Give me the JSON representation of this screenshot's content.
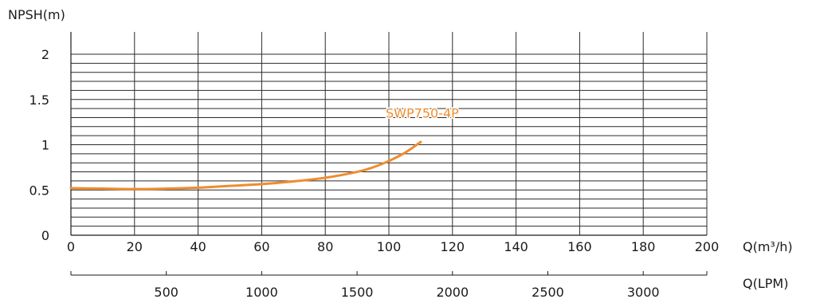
{
  "chart_data": {
    "type": "line",
    "title": "",
    "ylabel": "NPSH(m)",
    "xlabel": "Q(m³/h)",
    "x2label": "Q(LPM)",
    "ylim": [
      0,
      2
    ],
    "xlim": [
      0,
      200
    ],
    "y_ticks": [
      "0",
      "0.5",
      "1",
      "1.5",
      "2"
    ],
    "y_tick_values": [
      0,
      0.5,
      1,
      1.5,
      2
    ],
    "y_minor_step": 0.1,
    "x_ticks": [
      "0",
      "20",
      "40",
      "60",
      "80",
      "100",
      "120",
      "140",
      "160",
      "180",
      "200"
    ],
    "x_tick_values": [
      0,
      20,
      40,
      60,
      80,
      100,
      120,
      140,
      160,
      180,
      200
    ],
    "x2_ticks": [
      "500",
      "1000",
      "1500",
      "2000",
      "2500",
      "3000"
    ],
    "x2_tick_values": [
      500,
      1000,
      1500,
      2000,
      2500,
      3000
    ],
    "x2_lim": [
      0,
      3333.33
    ],
    "series": [
      {
        "name": "SWP750-4P",
        "color": "#f08c2e",
        "x": [
          0,
          10,
          20,
          30,
          40,
          50,
          60,
          70,
          80,
          90,
          95,
          100,
          105,
          110
        ],
        "y": [
          0.52,
          0.515,
          0.51,
          0.515,
          0.525,
          0.545,
          0.565,
          0.595,
          0.635,
          0.7,
          0.75,
          0.82,
          0.91,
          1.03
        ]
      }
    ],
    "grid": "horizontal and vertical"
  }
}
